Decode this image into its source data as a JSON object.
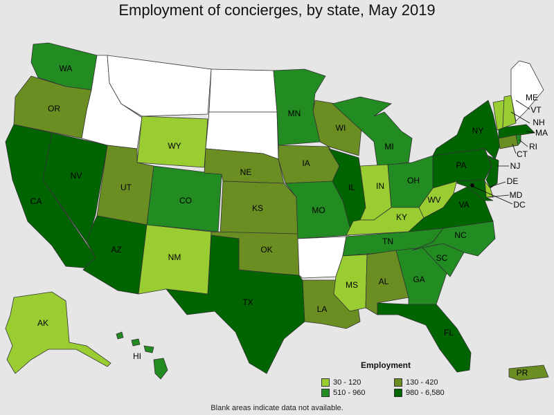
{
  "title": "Employment of concierges, by state, May 2019",
  "legend": {
    "title": "Employment",
    "bins": [
      {
        "label": "30 - 120",
        "color": "#9acd32"
      },
      {
        "label": "130 - 420",
        "color": "#6b8e23"
      },
      {
        "label": "510 - 960",
        "color": "#228b22"
      },
      {
        "label": "980 - 6,580",
        "color": "#006400"
      }
    ]
  },
  "no_data_color": "#ffffff",
  "footnote": "Blank areas indicate data not available.",
  "states": [
    {
      "abbr": "WA",
      "bin": 2
    },
    {
      "abbr": "OR",
      "bin": 1
    },
    {
      "abbr": "CA",
      "bin": 3
    },
    {
      "abbr": "NV",
      "bin": 3
    },
    {
      "abbr": "ID",
      "bin": -1
    },
    {
      "abbr": "MT",
      "bin": -1
    },
    {
      "abbr": "WY",
      "bin": 0
    },
    {
      "abbr": "UT",
      "bin": 1
    },
    {
      "abbr": "AZ",
      "bin": 3
    },
    {
      "abbr": "CO",
      "bin": 2
    },
    {
      "abbr": "NM",
      "bin": 0
    },
    {
      "abbr": "ND",
      "bin": -1
    },
    {
      "abbr": "SD",
      "bin": -1
    },
    {
      "abbr": "NE",
      "bin": 1
    },
    {
      "abbr": "KS",
      "bin": 1
    },
    {
      "abbr": "OK",
      "bin": 1
    },
    {
      "abbr": "TX",
      "bin": 3
    },
    {
      "abbr": "MN",
      "bin": 2
    },
    {
      "abbr": "IA",
      "bin": 1
    },
    {
      "abbr": "MO",
      "bin": 2
    },
    {
      "abbr": "AR",
      "bin": -1
    },
    {
      "abbr": "LA",
      "bin": 1
    },
    {
      "abbr": "WI",
      "bin": 1
    },
    {
      "abbr": "IL",
      "bin": 3
    },
    {
      "abbr": "MS",
      "bin": 0
    },
    {
      "abbr": "MI",
      "bin": 2
    },
    {
      "abbr": "IN",
      "bin": 0
    },
    {
      "abbr": "KY",
      "bin": 0
    },
    {
      "abbr": "TN",
      "bin": 2
    },
    {
      "abbr": "AL",
      "bin": 1
    },
    {
      "abbr": "OH",
      "bin": 2
    },
    {
      "abbr": "WV",
      "bin": 0
    },
    {
      "abbr": "GA",
      "bin": 2
    },
    {
      "abbr": "FL",
      "bin": 3
    },
    {
      "abbr": "SC",
      "bin": 2
    },
    {
      "abbr": "NC",
      "bin": 2
    },
    {
      "abbr": "VA",
      "bin": 3
    },
    {
      "abbr": "PA",
      "bin": 3
    },
    {
      "abbr": "NY",
      "bin": 3
    },
    {
      "abbr": "VT",
      "bin": 0
    },
    {
      "abbr": "NH",
      "bin": 0
    },
    {
      "abbr": "ME",
      "bin": -1
    },
    {
      "abbr": "MA",
      "bin": 3
    },
    {
      "abbr": "RI",
      "bin": 2
    },
    {
      "abbr": "CT",
      "bin": 1
    },
    {
      "abbr": "NJ",
      "bin": 3
    },
    {
      "abbr": "DE",
      "bin": 0
    },
    {
      "abbr": "MD",
      "bin": 3
    },
    {
      "abbr": "DC",
      "bin": 3
    },
    {
      "abbr": "AK",
      "bin": 0
    },
    {
      "abbr": "HI",
      "bin": 2
    },
    {
      "abbr": "PR",
      "bin": 1
    }
  ]
}
